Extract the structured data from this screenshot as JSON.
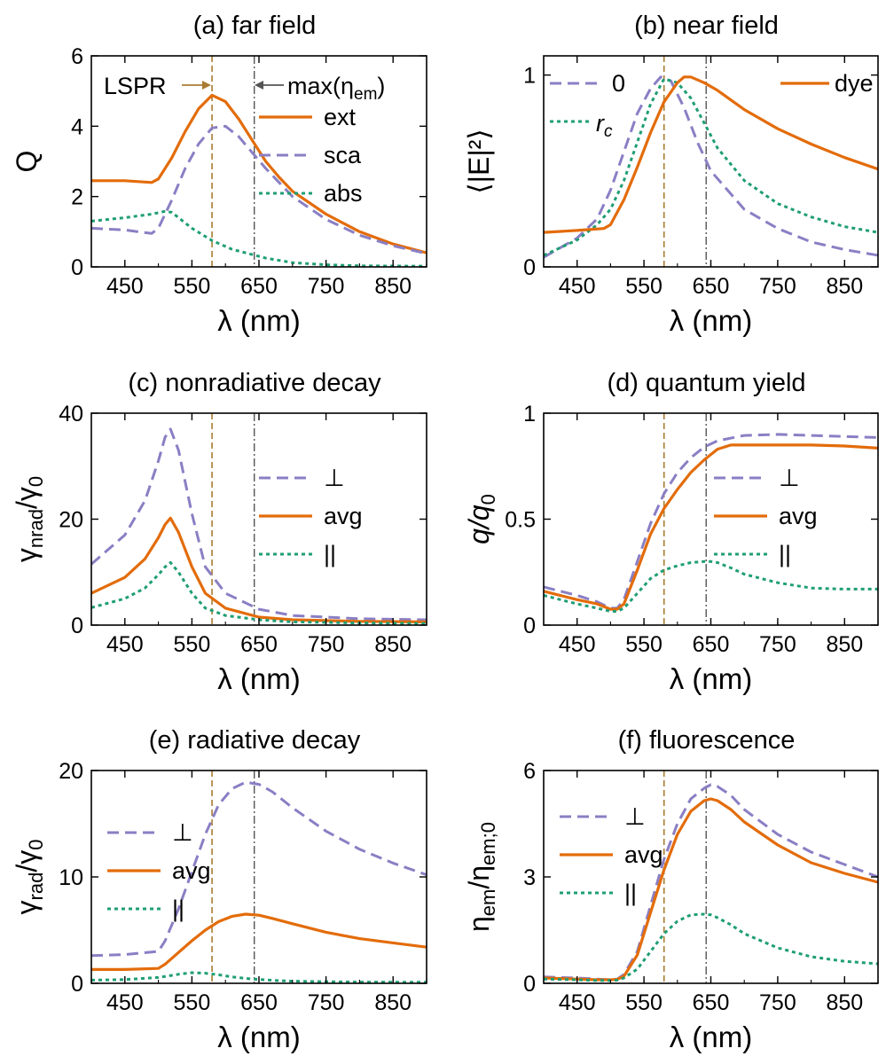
{
  "figure": {
    "colors": {
      "ext": "#e36c0a",
      "sca": "#8a7fc4",
      "abs": "#1f9e74",
      "avg": "#e36c0a",
      "perp": "#8a7fc4",
      "par": "#1f9e74",
      "lspr_line": "#a97c32",
      "max_line": "#555555"
    },
    "markers": {
      "lspr_nm": 580,
      "max_em_nm": 643
    }
  },
  "chart_data": [
    {
      "id": "a",
      "type": "line",
      "title": "(a) far field",
      "xlabel": "λ (nm)",
      "ylabel": "Q",
      "xlim": [
        400,
        900
      ],
      "ylim": [
        0,
        6
      ],
      "xticks": [
        "450",
        "550",
        "650",
        "750",
        "850"
      ],
      "yticks": [
        "0",
        "2",
        "4",
        "6"
      ],
      "annotations": {
        "lspr": "LSPR",
        "max_prefix": "max(η",
        "max_sub": "em",
        "max_suffix": ")"
      },
      "series": [
        {
          "name": "ext",
          "style": "solid",
          "x": [
            400,
            450,
            490,
            500,
            520,
            540,
            560,
            580,
            600,
            620,
            640,
            660,
            680,
            700,
            750,
            800,
            850,
            900
          ],
          "y": [
            2.45,
            2.45,
            2.4,
            2.5,
            3.1,
            3.85,
            4.5,
            4.88,
            4.7,
            4.2,
            3.6,
            3.0,
            2.55,
            2.15,
            1.5,
            1.0,
            0.65,
            0.4
          ]
        },
        {
          "name": "sca",
          "style": "dashed",
          "x": [
            400,
            450,
            490,
            500,
            520,
            540,
            560,
            580,
            600,
            620,
            640,
            660,
            680,
            700,
            750,
            800,
            850,
            900
          ],
          "y": [
            1.1,
            1.05,
            0.95,
            1.1,
            1.9,
            2.8,
            3.5,
            3.95,
            4.0,
            3.7,
            3.25,
            2.8,
            2.4,
            2.0,
            1.35,
            0.9,
            0.6,
            0.38
          ]
        },
        {
          "name": "abs",
          "style": "dotted",
          "x": [
            400,
            450,
            490,
            510,
            520,
            530,
            550,
            580,
            610,
            640,
            660,
            700,
            750,
            800,
            900
          ],
          "y": [
            1.3,
            1.4,
            1.5,
            1.58,
            1.55,
            1.4,
            1.1,
            0.75,
            0.5,
            0.35,
            0.25,
            0.12,
            0.06,
            0.03,
            0.02
          ]
        }
      ]
    },
    {
      "id": "b",
      "type": "line",
      "title": "(b) near field",
      "xlabel": "λ (nm)",
      "ylabel": "⟨|E|²⟩",
      "xlim": [
        400,
        900
      ],
      "ylim": [
        0,
        1.1
      ],
      "xticks": [
        "450",
        "550",
        "650",
        "750",
        "850"
      ],
      "yticks": [
        "0",
        "1"
      ],
      "series": [
        {
          "name": "0",
          "style": "dashed",
          "x": [
            400,
            450,
            480,
            500,
            520,
            540,
            560,
            575,
            590,
            610,
            630,
            650,
            700,
            750,
            800,
            850,
            900
          ],
          "y": [
            0.05,
            0.15,
            0.25,
            0.4,
            0.6,
            0.8,
            0.93,
            0.99,
            0.97,
            0.83,
            0.65,
            0.5,
            0.3,
            0.2,
            0.13,
            0.09,
            0.06
          ]
        },
        {
          "name": "r_c",
          "style": "dotted",
          "x": [
            400,
            450,
            480,
            500,
            520,
            540,
            560,
            580,
            600,
            620,
            640,
            660,
            700,
            750,
            800,
            850,
            900
          ],
          "y": [
            0.06,
            0.14,
            0.22,
            0.3,
            0.45,
            0.65,
            0.85,
            0.98,
            0.96,
            0.88,
            0.75,
            0.62,
            0.45,
            0.33,
            0.26,
            0.21,
            0.18
          ]
        },
        {
          "name": "dye",
          "style": "solid",
          "x": [
            400,
            450,
            490,
            500,
            520,
            540,
            560,
            580,
            600,
            610,
            620,
            640,
            660,
            700,
            750,
            800,
            850,
            900
          ],
          "y": [
            0.18,
            0.19,
            0.2,
            0.22,
            0.35,
            0.52,
            0.7,
            0.86,
            0.96,
            0.99,
            0.99,
            0.96,
            0.92,
            0.82,
            0.72,
            0.64,
            0.57,
            0.51
          ]
        }
      ]
    },
    {
      "id": "c",
      "type": "line",
      "title": "(c) nonradiative decay",
      "xlabel": "λ (nm)",
      "ylabel": "γnrad/γ0",
      "ylabel_main": "γ",
      "ylabel_sub1": "nrad",
      "ylabel_mid": "/γ",
      "ylabel_sub2": "0",
      "xlim": [
        400,
        900
      ],
      "ylim": [
        0,
        40
      ],
      "xticks": [
        "450",
        "550",
        "650",
        "750",
        "850"
      ],
      "yticks": [
        "0",
        "20",
        "40"
      ],
      "series": [
        {
          "name": "⊥",
          "style": "dashed",
          "x": [
            400,
            450,
            480,
            500,
            510,
            518,
            530,
            550,
            570,
            600,
            650,
            700,
            800,
            900
          ],
          "y": [
            11.5,
            17,
            23.5,
            31,
            35.5,
            37,
            33,
            21,
            11,
            6,
            3,
            1.8,
            1.2,
            1.0
          ]
        },
        {
          "name": "avg",
          "style": "solid",
          "x": [
            400,
            450,
            480,
            500,
            510,
            518,
            530,
            550,
            570,
            600,
            650,
            700,
            800,
            900
          ],
          "y": [
            6,
            9,
            12.5,
            16.5,
            19,
            20.2,
            17.5,
            11,
            6,
            3.2,
            1.5,
            1.0,
            0.7,
            0.6
          ]
        },
        {
          "name": "||",
          "style": "dotted",
          "x": [
            400,
            450,
            480,
            500,
            510,
            518,
            530,
            550,
            570,
            600,
            650,
            700,
            800,
            900
          ],
          "y": [
            3.3,
            5,
            7,
            9.5,
            11,
            11.8,
            10,
            6,
            3.2,
            1.8,
            1.0,
            0.6,
            0.4,
            0.3
          ]
        }
      ]
    },
    {
      "id": "d",
      "type": "line",
      "title": "(d) quantum yield",
      "xlabel": "λ (nm)",
      "ylabel": "q/q0",
      "ylabel_main": "q/q",
      "ylabel_sub": "0",
      "xlim": [
        400,
        900
      ],
      "ylim": [
        0,
        1
      ],
      "xticks": [
        "450",
        "550",
        "650",
        "750",
        "850"
      ],
      "yticks": [
        "0",
        "0.5",
        "1"
      ],
      "series": [
        {
          "name": "⊥",
          "style": "dashed",
          "x": [
            400,
            450,
            480,
            500,
            510,
            520,
            540,
            560,
            580,
            600,
            620,
            640,
            660,
            700,
            750,
            800,
            850,
            900
          ],
          "y": [
            0.18,
            0.14,
            0.11,
            0.08,
            0.08,
            0.12,
            0.3,
            0.48,
            0.62,
            0.72,
            0.79,
            0.84,
            0.87,
            0.895,
            0.9,
            0.895,
            0.89,
            0.885
          ]
        },
        {
          "name": "avg",
          "style": "solid",
          "x": [
            400,
            450,
            480,
            500,
            510,
            520,
            540,
            560,
            580,
            600,
            620,
            640,
            660,
            680,
            700,
            750,
            800,
            850,
            900
          ],
          "y": [
            0.16,
            0.12,
            0.1,
            0.075,
            0.075,
            0.1,
            0.26,
            0.43,
            0.55,
            0.64,
            0.72,
            0.78,
            0.83,
            0.85,
            0.85,
            0.85,
            0.85,
            0.845,
            0.835
          ]
        },
        {
          "name": "||",
          "style": "dotted",
          "x": [
            400,
            450,
            480,
            500,
            510,
            520,
            540,
            560,
            580,
            600,
            620,
            640,
            650,
            660,
            680,
            700,
            750,
            800,
            850,
            900
          ],
          "y": [
            0.14,
            0.1,
            0.08,
            0.065,
            0.065,
            0.08,
            0.15,
            0.22,
            0.26,
            0.28,
            0.295,
            0.3,
            0.3,
            0.295,
            0.27,
            0.24,
            0.2,
            0.175,
            0.17,
            0.17
          ]
        }
      ]
    },
    {
      "id": "e",
      "type": "line",
      "title": "(e) radiative decay",
      "xlabel": "λ (nm)",
      "ylabel": "γrad/γ0",
      "ylabel_main": "γ",
      "ylabel_sub1": "rad",
      "ylabel_mid": "/γ",
      "ylabel_sub2": "0",
      "xlim": [
        400,
        900
      ],
      "ylim": [
        0,
        20
      ],
      "xticks": [
        "450",
        "550",
        "650",
        "750",
        "850"
      ],
      "yticks": [
        "0",
        "10",
        "20"
      ],
      "series": [
        {
          "name": "⊥",
          "style": "dashed",
          "x": [
            400,
            450,
            500,
            510,
            530,
            550,
            570,
            590,
            610,
            630,
            650,
            670,
            700,
            750,
            800,
            850,
            900
          ],
          "y": [
            2.6,
            2.7,
            3.0,
            4.0,
            7.0,
            10.5,
            14,
            16.8,
            18.3,
            18.9,
            18.7,
            18,
            16.5,
            14.3,
            12.6,
            11.3,
            10.2
          ]
        },
        {
          "name": "avg",
          "style": "solid",
          "x": [
            400,
            450,
            500,
            510,
            530,
            550,
            570,
            590,
            610,
            630,
            650,
            670,
            700,
            750,
            800,
            850,
            900
          ],
          "y": [
            1.3,
            1.3,
            1.4,
            1.8,
            2.9,
            4.0,
            5.0,
            5.8,
            6.3,
            6.5,
            6.4,
            6.1,
            5.6,
            4.8,
            4.2,
            3.8,
            3.4
          ]
        },
        {
          "name": "||",
          "style": "dotted",
          "x": [
            400,
            450,
            500,
            530,
            550,
            570,
            590,
            610,
            640,
            680,
            700,
            750,
            800,
            900
          ],
          "y": [
            0.3,
            0.35,
            0.55,
            0.85,
            1.0,
            0.95,
            0.8,
            0.6,
            0.4,
            0.25,
            0.2,
            0.15,
            0.12,
            0.1
          ]
        }
      ]
    },
    {
      "id": "f",
      "type": "line",
      "title": "(f) fluorescence",
      "xlabel": "λ (nm)",
      "ylabel": "ηem/ηem;0",
      "ylabel_main": "η",
      "ylabel_sub1": "em",
      "ylabel_mid": "/η",
      "ylabel_sub2": "em;0",
      "xlim": [
        400,
        900
      ],
      "ylim": [
        0,
        6
      ],
      "xticks": [
        "450",
        "550",
        "650",
        "750",
        "850"
      ],
      "yticks": [
        "0",
        "3",
        "6"
      ],
      "series": [
        {
          "name": "⊥",
          "style": "dashed",
          "x": [
            400,
            450,
            480,
            500,
            510,
            520,
            540,
            560,
            580,
            600,
            620,
            640,
            650,
            660,
            680,
            700,
            750,
            800,
            850,
            900
          ],
          "y": [
            0.18,
            0.15,
            0.12,
            0.1,
            0.12,
            0.25,
            0.9,
            2.2,
            3.5,
            4.5,
            5.2,
            5.5,
            5.6,
            5.55,
            5.3,
            4.9,
            4.2,
            3.7,
            3.35,
            3.0
          ]
        },
        {
          "name": "avg",
          "style": "solid",
          "x": [
            400,
            450,
            480,
            500,
            510,
            520,
            540,
            560,
            580,
            600,
            620,
            640,
            650,
            660,
            680,
            700,
            750,
            800,
            850,
            900
          ],
          "y": [
            0.15,
            0.12,
            0.1,
            0.1,
            0.11,
            0.2,
            0.8,
            2.0,
            3.2,
            4.2,
            4.85,
            5.15,
            5.2,
            5.15,
            4.9,
            4.55,
            3.9,
            3.4,
            3.1,
            2.85
          ]
        },
        {
          "name": "||",
          "style": "dotted",
          "x": [
            400,
            450,
            480,
            500,
            510,
            520,
            540,
            560,
            580,
            600,
            620,
            640,
            650,
            660,
            680,
            700,
            750,
            800,
            850,
            900
          ],
          "y": [
            0.12,
            0.1,
            0.08,
            0.08,
            0.09,
            0.15,
            0.4,
            0.9,
            1.4,
            1.75,
            1.93,
            1.95,
            1.93,
            1.85,
            1.65,
            1.4,
            1.0,
            0.75,
            0.62,
            0.55
          ]
        }
      ]
    }
  ]
}
